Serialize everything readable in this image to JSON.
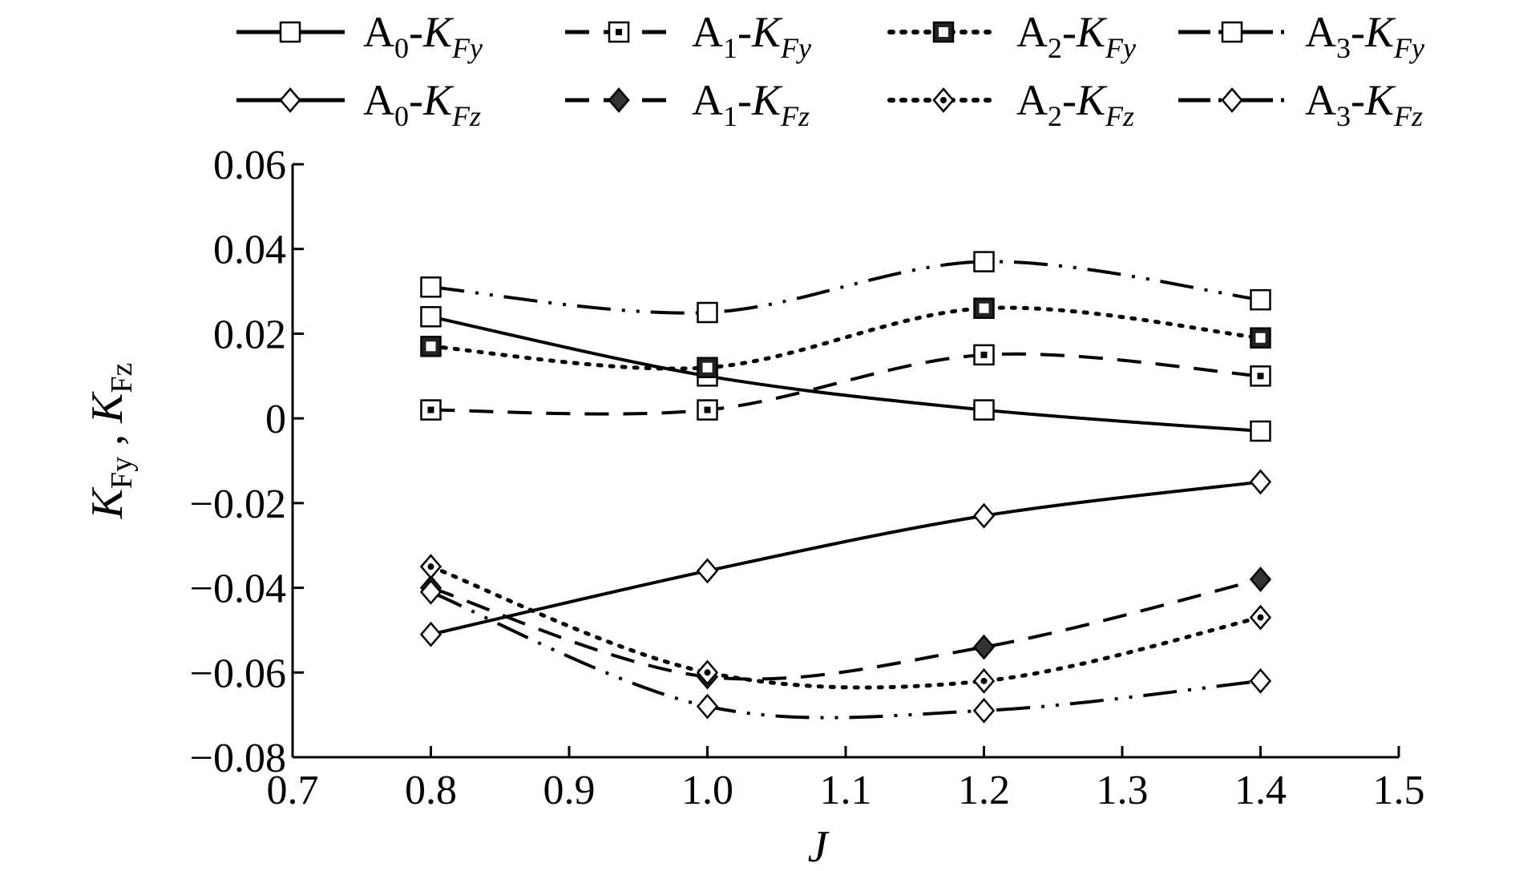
{
  "chart_data": {
    "type": "line",
    "xlabel": "J",
    "ylabel": "K_Fy , K_Fz",
    "ylabel_parts": {
      "k1": "K",
      "s1": "Fy",
      "sep": " , ",
      "k2": "K",
      "s2": "Fz"
    },
    "xlim": [
      0.7,
      1.5
    ],
    "ylim": [
      -0.08,
      0.06
    ],
    "x_ticks": [
      "0.7",
      "0.8",
      "0.9",
      "1.0",
      "1.1",
      "1.2",
      "1.3",
      "1.4",
      "1.5"
    ],
    "y_ticks": [
      "0.06",
      "0.04",
      "0.02",
      "0",
      "−0.02",
      "−0.04",
      "−0.06",
      "−0.08"
    ],
    "x": [
      0.8,
      1.0,
      1.2,
      1.4
    ],
    "legend_placement": "top",
    "grid": false,
    "series": [
      {
        "name": "A0-KFy",
        "label": {
          "a": "A",
          "sub": "0",
          "k": "K",
          "ksub": "Fy"
        },
        "dash": "solid",
        "marker": "square-open",
        "values": [
          0.024,
          0.01,
          0.002,
          -0.003
        ]
      },
      {
        "name": "A1-KFy",
        "label": {
          "a": "A",
          "sub": "1",
          "k": "K",
          "ksub": "Fy"
        },
        "dash": "dash",
        "marker": "square-dot",
        "values": [
          0.002,
          0.002,
          0.015,
          0.01
        ]
      },
      {
        "name": "A2-KFy",
        "label": {
          "a": "A",
          "sub": "2",
          "k": "K",
          "ksub": "Fy"
        },
        "dash": "dot",
        "marker": "square-filled",
        "values": [
          0.017,
          0.012,
          0.026,
          0.019
        ]
      },
      {
        "name": "A3-KFy",
        "label": {
          "a": "A",
          "sub": "3",
          "k": "K",
          "ksub": "Fy"
        },
        "dash": "dashdotdot",
        "marker": "square-open",
        "values": [
          0.031,
          0.025,
          0.037,
          0.028
        ]
      },
      {
        "name": "A0-KFz",
        "label": {
          "a": "A",
          "sub": "0",
          "k": "K",
          "ksub": "Fz"
        },
        "dash": "solid",
        "marker": "diamond-open",
        "values": [
          -0.051,
          -0.036,
          -0.023,
          -0.015
        ]
      },
      {
        "name": "A1-KFz",
        "label": {
          "a": "A",
          "sub": "1",
          "k": "K",
          "ksub": "Fz"
        },
        "dash": "dash",
        "marker": "diamond-filled",
        "values": [
          -0.04,
          -0.061,
          -0.054,
          -0.038
        ]
      },
      {
        "name": "A2-KFz",
        "label": {
          "a": "A",
          "sub": "2",
          "k": "K",
          "ksub": "Fz"
        },
        "dash": "dot",
        "marker": "diamond-dot",
        "values": [
          -0.035,
          -0.06,
          -0.062,
          -0.047
        ]
      },
      {
        "name": "A3-KFz",
        "label": {
          "a": "A",
          "sub": "3",
          "k": "K",
          "ksub": "Fz"
        },
        "dash": "dashdotdot",
        "marker": "diamond-open",
        "values": [
          -0.041,
          -0.068,
          -0.069,
          -0.062
        ]
      }
    ]
  }
}
